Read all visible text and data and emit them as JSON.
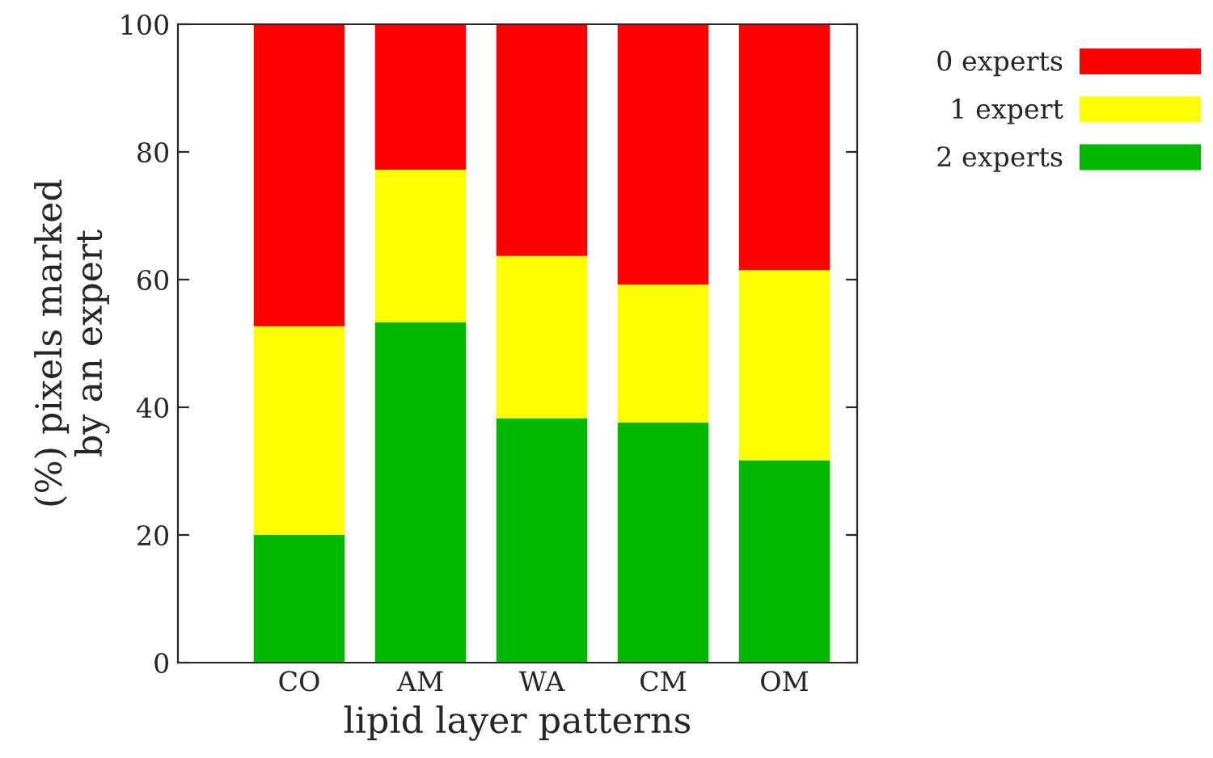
{
  "chart_data": {
    "type": "bar",
    "stacked": true,
    "xlabel": "lipid layer patterns",
    "ylabel": "(%) pixels marked\nby an expert",
    "categories": [
      "CO",
      "AM",
      "WA",
      "CM",
      "OM"
    ],
    "series": [
      {
        "name": "2 experts",
        "color": "#00b800",
        "values": [
          20.0,
          53.3,
          38.3,
          37.6,
          31.7
        ]
      },
      {
        "name": "1 expert",
        "color": "#ffff00",
        "values": [
          32.7,
          23.9,
          25.4,
          21.6,
          29.8
        ]
      },
      {
        "name": "0 experts",
        "color": "#ff0000",
        "values": [
          47.3,
          22.8,
          36.3,
          40.8,
          38.5
        ]
      }
    ],
    "ylim": [
      0,
      100
    ],
    "yticks": [
      0,
      20,
      40,
      60,
      80,
      100
    ],
    "legend": "top right",
    "grid": false
  }
}
